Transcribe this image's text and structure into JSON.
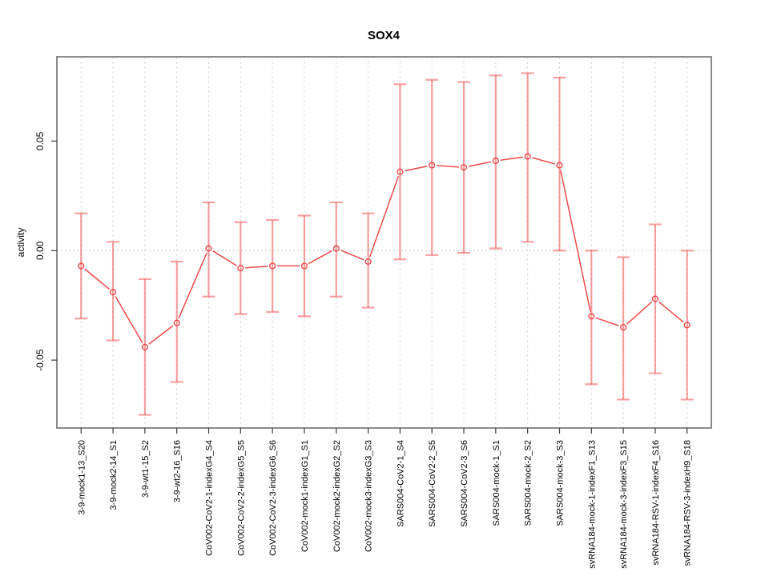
{
  "chart_data": {
    "type": "line",
    "title": "SOX4",
    "xlabel": "",
    "ylabel": "activity",
    "legend": "none",
    "grid": "vertical-dashed-per-category, dotted-zero-line",
    "ylim": [
      -0.081,
      0.0885
    ],
    "ytick_values": [
      0.05,
      0.0,
      -0.05
    ],
    "ytick_labels": [
      "0.05",
      "0.00",
      "-0.05"
    ],
    "categories": [
      "3-9-mock1-13_S20",
      "3-9-mock2-14_S1",
      "3-9-wt1-15_S2",
      "3-9-wt2-16_S16",
      "CoV002-CoV2-1-indexG4_S4",
      "CoV002-CoV2-2-indexG5_S5",
      "CoV002-CoV2-3-indexG6_S6",
      "CoV002-mock1-indexG1_S1",
      "CoV002-mock2-indexG2_S2",
      "CoV002-mock3-indexG3_S3",
      "SARS004-CoV2-1_S4",
      "SARS004-CoV2-2_S5",
      "SARS004-CoV2-3_S6",
      "SARS004-mock-1_S1",
      "SARS004-mock-2_S2",
      "SARS004-mock-3_S3",
      "svRNA184-mock-1-indexF1_S13",
      "svRNA184-mock-3-indexF3_S15",
      "svRNA184-RSV-1-indexF4_S16",
      "svRNA184-RSV-3-indexH9_S18"
    ],
    "series": [
      {
        "name": "activity",
        "values": [
          -0.007,
          -0.019,
          -0.044,
          -0.033,
          0.001,
          -0.008,
          -0.007,
          -0.007,
          0.001,
          -0.005,
          0.036,
          0.039,
          0.038,
          0.041,
          0.043,
          0.039,
          -0.03,
          -0.035,
          -0.022,
          -0.034
        ],
        "err_high": [
          0.017,
          0.004,
          -0.013,
          -0.005,
          0.022,
          0.013,
          0.014,
          0.016,
          0.022,
          0.017,
          0.076,
          0.078,
          0.077,
          0.08,
          0.081,
          0.079,
          0.0,
          -0.003,
          0.012,
          0.0
        ],
        "err_low": [
          -0.031,
          -0.041,
          -0.075,
          -0.06,
          -0.021,
          -0.029,
          -0.028,
          -0.03,
          -0.021,
          -0.026,
          -0.004,
          -0.002,
          -0.001,
          0.001,
          0.004,
          0.0,
          -0.061,
          -0.068,
          -0.056,
          -0.068
        ]
      }
    ],
    "colors": {
      "point_line": "#f24a4a",
      "error_bar": "rgba(244,84,84,0.55)",
      "grid_vertical": "#dcdcdc",
      "zero_line": "#c9c9c9",
      "frame": "#8a8a8a",
      "tick": "#3a3a3a",
      "text": "#000000"
    }
  }
}
